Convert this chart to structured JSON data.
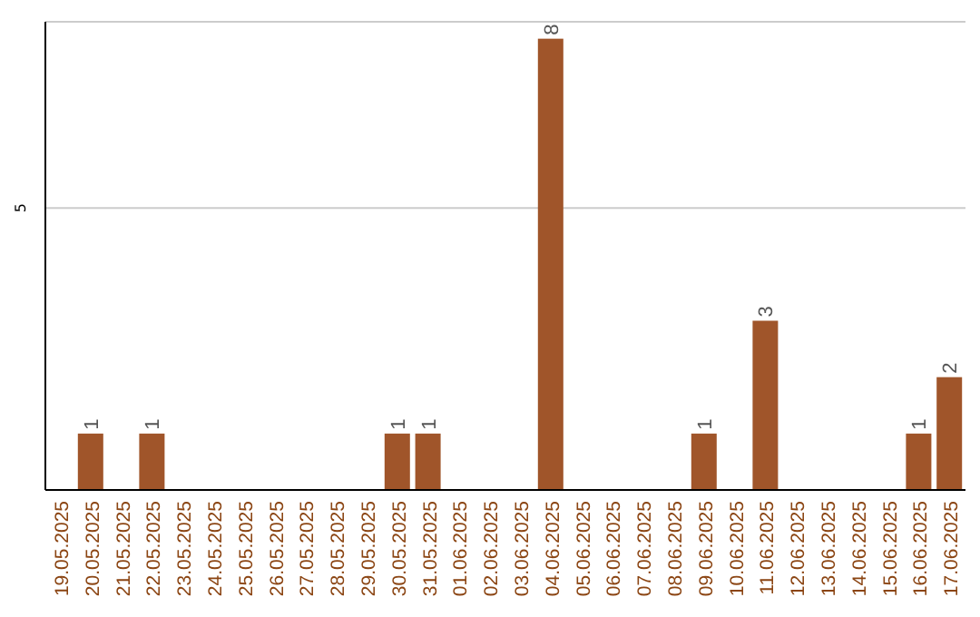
{
  "chart_data": {
    "type": "bar",
    "categories": [
      "19.05.2025",
      "20.05.2025",
      "21.05.2025",
      "22.05.2025",
      "23.05.2025",
      "24.05.2025",
      "25.05.2025",
      "26.05.2025",
      "27.05.2025",
      "28.05.2025",
      "29.05.2025",
      "30.05.2025",
      "31.05.2025",
      "01.06.2025",
      "02.06.2025",
      "03.06.2025",
      "04.06.2025",
      "05.06.2025",
      "06.06.2025",
      "07.06.2025",
      "08.06.2025",
      "09.06.2025",
      "10.06.2025",
      "11.06.2025",
      "12.06.2025",
      "13.06.2025",
      "14.06.2025",
      "15.06.2025",
      "16.06.2025",
      "17.06.2025"
    ],
    "values": [
      0,
      1,
      0,
      1,
      0,
      0,
      0,
      0,
      0,
      0,
      0,
      1,
      1,
      0,
      0,
      0,
      8,
      0,
      0,
      0,
      0,
      1,
      0,
      3,
      0,
      0,
      0,
      0,
      1,
      2
    ],
    "value_labels": [
      null,
      "1",
      null,
      "1",
      null,
      null,
      null,
      null,
      null,
      null,
      null,
      "1",
      "1",
      null,
      null,
      null,
      "8",
      null,
      null,
      null,
      null,
      "1",
      null,
      "3",
      null,
      null,
      null,
      null,
      "1",
      "2"
    ],
    "color": "#a0552a",
    "ylim": [
      0,
      8.3
    ],
    "yticks": [
      5
    ],
    "grid": "y"
  }
}
